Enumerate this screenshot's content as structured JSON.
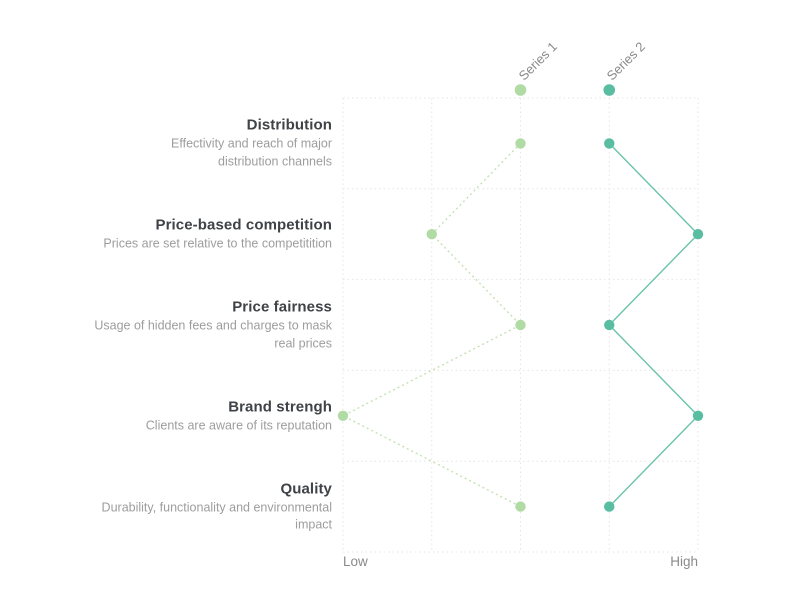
{
  "chart_data": {
    "type": "line",
    "variant": "parallel-dot-slope-chart",
    "title": "",
    "legend_position": "top-rotated-45",
    "grid": true,
    "axis": {
      "low_label": "Low",
      "high_label": "High",
      "min": 0,
      "max": 4
    },
    "categories": [
      {
        "label": "Distribution",
        "description": "Effectivity and reach of major distribution channels",
        "description_lines": [
          "Effectivity and reach of major",
          "distribution channels"
        ]
      },
      {
        "label": "Price-based competition",
        "description": "Prices are set relative to the competitition",
        "description_lines": [
          "Prices are set relative to the competitition"
        ]
      },
      {
        "label": "Price fairness",
        "description": "Usage of hidden fees and charges to mask real prices",
        "description_lines": [
          "Usage of hidden fees and charges to mask",
          "real prices"
        ]
      },
      {
        "label": "Brand strengh",
        "description": "Clients are aware of its reputation",
        "description_lines": [
          "Clients are aware of its reputation"
        ]
      },
      {
        "label": "Quality",
        "description": "Durability, functionality and environmental impact",
        "description_lines": [
          "Durability, functionality and environmental",
          "impact"
        ]
      }
    ],
    "series": [
      {
        "name": "Series 1",
        "values": [
          2,
          1,
          2,
          0,
          2
        ],
        "dot_color": "#b1dba4",
        "line_color": "#c3e2b6",
        "line_style": "dashed"
      },
      {
        "name": "Series 2",
        "values": [
          3,
          4,
          3,
          4,
          3
        ],
        "dot_color": "#58bda1",
        "line_color": "#6ac3ab",
        "line_style": "solid"
      }
    ],
    "colors": {
      "background": "#ffffff",
      "grid": "#e5e5e5",
      "category_title": "#3f4347",
      "category_description": "#9d9d9d",
      "axis_label": "#8a8a8a",
      "legend_label": "#8a8a8a"
    }
  }
}
